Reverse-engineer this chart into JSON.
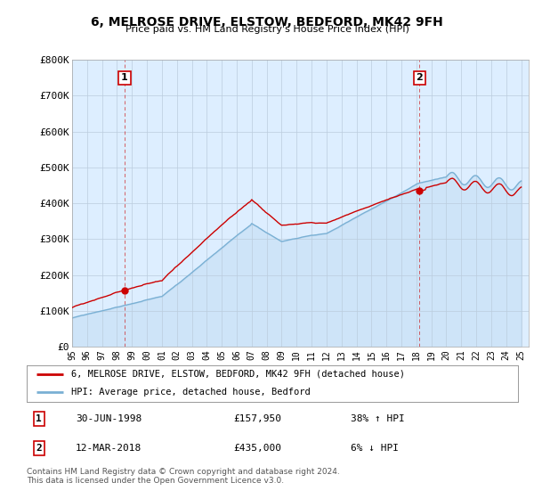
{
  "title": "6, MELROSE DRIVE, ELSTOW, BEDFORD, MK42 9FH",
  "subtitle": "Price paid vs. HM Land Registry's House Price Index (HPI)",
  "ylim": [
    0,
    800000
  ],
  "yticks": [
    0,
    100000,
    200000,
    300000,
    400000,
    500000,
    600000,
    700000,
    800000
  ],
  "ytick_labels": [
    "£0",
    "£100K",
    "£200K",
    "£300K",
    "£400K",
    "£500K",
    "£600K",
    "£700K",
    "£800K"
  ],
  "x_start_year": 1995,
  "x_end_year": 2025,
  "sale1_year": 1998.5,
  "sale1_price": 157950,
  "sale1_label": "1",
  "sale2_year": 2018.2,
  "sale2_price": 435000,
  "sale2_label": "2",
  "legend_line1": "6, MELROSE DRIVE, ELSTOW, BEDFORD, MK42 9FH (detached house)",
  "legend_line2": "HPI: Average price, detached house, Bedford",
  "annotation1_date": "30-JUN-1998",
  "annotation1_price": "£157,950",
  "annotation1_hpi": "38% ↑ HPI",
  "annotation2_date": "12-MAR-2018",
  "annotation2_price": "£435,000",
  "annotation2_hpi": "6% ↓ HPI",
  "footer": "Contains HM Land Registry data © Crown copyright and database right 2024.\nThis data is licensed under the Open Government Licence v3.0.",
  "line_color_red": "#cc0000",
  "line_color_blue": "#7ab0d4",
  "background_color": "#ffffff",
  "chart_bg_color": "#ddeeff",
  "grid_color": "#bbccdd"
}
